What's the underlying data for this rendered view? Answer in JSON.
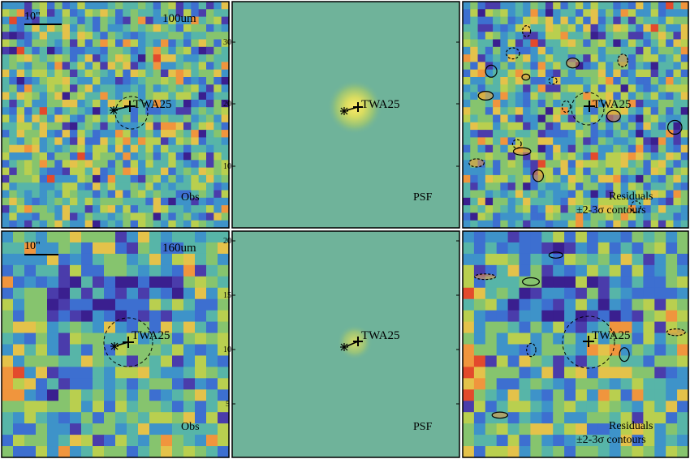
{
  "rows": [
    {
      "wavelength": "100um",
      "panels": [
        {
          "kind": "obs",
          "target": "TWA25",
          "caption": "Obs",
          "scalebar": "10\""
        },
        {
          "kind": "psf",
          "target": "TWA25",
          "caption": "PSF",
          "ticks": [
            "30",
            "20",
            "10"
          ]
        },
        {
          "kind": "res",
          "target": "TWA25",
          "caption_line1": "Residuals",
          "caption_line2": "±2-3σ contours"
        }
      ]
    },
    {
      "wavelength": "160um",
      "panels": [
        {
          "kind": "obs",
          "target": "TWA25",
          "caption": "Obs",
          "scalebar": "10\""
        },
        {
          "kind": "psf",
          "target": "TWA25",
          "caption": "PSF",
          "ticks": [
            "20",
            "15",
            "10",
            "5"
          ]
        },
        {
          "kind": "res",
          "target": "TWA25",
          "caption_line1": "Residuals",
          "caption_line2": "±2-3σ contours"
        }
      ]
    }
  ],
  "colors": {
    "background": "#6fb39a",
    "psf_core": "#ffe96a",
    "frame": "#000000",
    "palette": [
      "#3a1f8f",
      "#4a3cab",
      "#3d6fd0",
      "#3e93c9",
      "#57b5a8",
      "#86c46e",
      "#b9cf4f",
      "#e4c24a",
      "#f0953d",
      "#e34a2c"
    ]
  }
}
